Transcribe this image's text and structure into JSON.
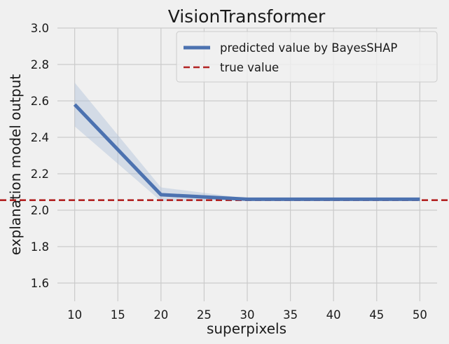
{
  "chart_data": {
    "type": "line",
    "title": "VisionTransformer",
    "xlabel": "superpixels",
    "ylabel": "explanation model output",
    "x": [
      10,
      20,
      30,
      40,
      50
    ],
    "xticks": [
      10,
      15,
      20,
      25,
      30,
      35,
      40,
      45,
      50
    ],
    "xlim": [
      8.0,
      52.0
    ],
    "yticks": [
      "1.6",
      "1.8",
      "2.0",
      "2.2",
      "2.4",
      "2.6",
      "2.8",
      "3.0"
    ],
    "ylim": [
      1.5,
      3.0
    ],
    "grid": true,
    "legend_position": "top-right",
    "series": [
      {
        "name": "predicted value by BayesSHAP",
        "style": "solid",
        "color": "#4c72b0",
        "values": [
          2.58,
          2.085,
          2.06,
          2.06,
          2.06
        ],
        "band_lower": [
          2.46,
          2.05,
          2.055,
          2.055,
          2.055
        ],
        "band_upper": [
          2.7,
          2.125,
          2.065,
          2.065,
          2.065
        ],
        "band_color": "#b0c1d9"
      },
      {
        "name": "true value",
        "style": "dashed",
        "color": "#b22222",
        "hline": 2.055
      }
    ]
  }
}
